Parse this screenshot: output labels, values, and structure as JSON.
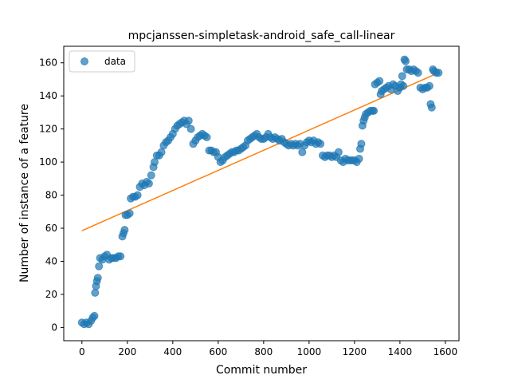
{
  "chart_data": {
    "type": "scatter",
    "title": "mpcjanssen-simpletask-android_safe_call-linear",
    "xlabel": "Commit number",
    "ylabel": "Number of instance of a feature",
    "xlim": [
      -80,
      1660
    ],
    "ylim": [
      -8,
      170
    ],
    "xticks": [
      0,
      200,
      400,
      600,
      800,
      1000,
      1200,
      1400,
      1600
    ],
    "yticks": [
      0,
      20,
      40,
      60,
      80,
      100,
      120,
      140,
      160
    ],
    "grid": false,
    "legend": {
      "position": "top-left",
      "entries": [
        "data"
      ]
    },
    "colors": {
      "scatter": "#1f77b4",
      "fit": "#ff7f0e"
    },
    "series": [
      {
        "name": "data",
        "type": "scatter",
        "points": [
          [
            0,
            3
          ],
          [
            10,
            2
          ],
          [
            20,
            3
          ],
          [
            30,
            2
          ],
          [
            40,
            4
          ],
          [
            48,
            6
          ],
          [
            55,
            7
          ],
          [
            58,
            21
          ],
          [
            62,
            25
          ],
          [
            66,
            28
          ],
          [
            70,
            30
          ],
          [
            75,
            37
          ],
          [
            80,
            42
          ],
          [
            90,
            41
          ],
          [
            100,
            43
          ],
          [
            110,
            44
          ],
          [
            120,
            41
          ],
          [
            130,
            42
          ],
          [
            140,
            42
          ],
          [
            150,
            42
          ],
          [
            160,
            43
          ],
          [
            170,
            43
          ],
          [
            178,
            55
          ],
          [
            183,
            57
          ],
          [
            188,
            59
          ],
          [
            192,
            68
          ],
          [
            200,
            68
          ],
          [
            210,
            69
          ],
          [
            215,
            78
          ],
          [
            225,
            79
          ],
          [
            235,
            79
          ],
          [
            245,
            80
          ],
          [
            255,
            85
          ],
          [
            265,
            87
          ],
          [
            275,
            86
          ],
          [
            285,
            88
          ],
          [
            295,
            87
          ],
          [
            305,
            92
          ],
          [
            315,
            97
          ],
          [
            320,
            100
          ],
          [
            330,
            104
          ],
          [
            340,
            104
          ],
          [
            350,
            106
          ],
          [
            360,
            110
          ],
          [
            370,
            112
          ],
          [
            380,
            113
          ],
          [
            390,
            115
          ],
          [
            400,
            117
          ],
          [
            410,
            120
          ],
          [
            420,
            122
          ],
          [
            430,
            123
          ],
          [
            440,
            124
          ],
          [
            450,
            125
          ],
          [
            460,
            123
          ],
          [
            470,
            125
          ],
          [
            480,
            120
          ],
          [
            490,
            111
          ],
          [
            500,
            113
          ],
          [
            510,
            115
          ],
          [
            520,
            116
          ],
          [
            530,
            117
          ],
          [
            540,
            116
          ],
          [
            550,
            115
          ],
          [
            560,
            107
          ],
          [
            570,
            107
          ],
          [
            580,
            106
          ],
          [
            590,
            106
          ],
          [
            600,
            103
          ],
          [
            610,
            100
          ],
          [
            620,
            101
          ],
          [
            630,
            103
          ],
          [
            640,
            104
          ],
          [
            650,
            105
          ],
          [
            660,
            106
          ],
          [
            670,
            106
          ],
          [
            680,
            107
          ],
          [
            690,
            107
          ],
          [
            700,
            108
          ],
          [
            710,
            109
          ],
          [
            720,
            110
          ],
          [
            730,
            113
          ],
          [
            740,
            114
          ],
          [
            750,
            115
          ],
          [
            760,
            116
          ],
          [
            770,
            117
          ],
          [
            780,
            115
          ],
          [
            790,
            114
          ],
          [
            800,
            114
          ],
          [
            810,
            115
          ],
          [
            820,
            117
          ],
          [
            830,
            115
          ],
          [
            840,
            114
          ],
          [
            850,
            115
          ],
          [
            860,
            114
          ],
          [
            870,
            113
          ],
          [
            880,
            114
          ],
          [
            890,
            112
          ],
          [
            900,
            111
          ],
          [
            910,
            110
          ],
          [
            920,
            111
          ],
          [
            930,
            110
          ],
          [
            940,
            111
          ],
          [
            950,
            110
          ],
          [
            960,
            111
          ],
          [
            970,
            106
          ],
          [
            980,
            110
          ],
          [
            990,
            112
          ],
          [
            1000,
            113
          ],
          [
            1010,
            112
          ],
          [
            1020,
            113
          ],
          [
            1030,
            111
          ],
          [
            1040,
            112
          ],
          [
            1050,
            111
          ],
          [
            1060,
            104
          ],
          [
            1070,
            103
          ],
          [
            1080,
            104
          ],
          [
            1090,
            104
          ],
          [
            1100,
            103
          ],
          [
            1110,
            104
          ],
          [
            1120,
            103
          ],
          [
            1130,
            106
          ],
          [
            1140,
            101
          ],
          [
            1150,
            100
          ],
          [
            1160,
            102
          ],
          [
            1170,
            101
          ],
          [
            1180,
            101
          ],
          [
            1190,
            101
          ],
          [
            1200,
            101
          ],
          [
            1210,
            100
          ],
          [
            1220,
            102
          ],
          [
            1225,
            108
          ],
          [
            1230,
            111
          ],
          [
            1235,
            122
          ],
          [
            1240,
            125
          ],
          [
            1245,
            127
          ],
          [
            1250,
            129
          ],
          [
            1260,
            130
          ],
          [
            1270,
            131
          ],
          [
            1280,
            131
          ],
          [
            1285,
            131
          ],
          [
            1290,
            147
          ],
          [
            1300,
            148
          ],
          [
            1310,
            149
          ],
          [
            1315,
            141
          ],
          [
            1320,
            143
          ],
          [
            1330,
            144
          ],
          [
            1340,
            145
          ],
          [
            1350,
            146
          ],
          [
            1360,
            144
          ],
          [
            1370,
            147
          ],
          [
            1380,
            146
          ],
          [
            1390,
            143
          ],
          [
            1400,
            145
          ],
          [
            1405,
            147
          ],
          [
            1410,
            152
          ],
          [
            1415,
            146
          ],
          [
            1420,
            162
          ],
          [
            1425,
            161
          ],
          [
            1430,
            156
          ],
          [
            1440,
            156
          ],
          [
            1450,
            155
          ],
          [
            1460,
            156
          ],
          [
            1470,
            155
          ],
          [
            1480,
            154
          ],
          [
            1490,
            145
          ],
          [
            1500,
            144
          ],
          [
            1510,
            145
          ],
          [
            1520,
            145
          ],
          [
            1530,
            146
          ],
          [
            1535,
            135
          ],
          [
            1540,
            133
          ],
          [
            1545,
            156
          ],
          [
            1550,
            155
          ],
          [
            1560,
            154
          ],
          [
            1570,
            154
          ]
        ]
      },
      {
        "name": "fit",
        "type": "line",
        "x": [
          0,
          1570
        ],
        "y": [
          58.5,
          154
        ]
      }
    ]
  }
}
